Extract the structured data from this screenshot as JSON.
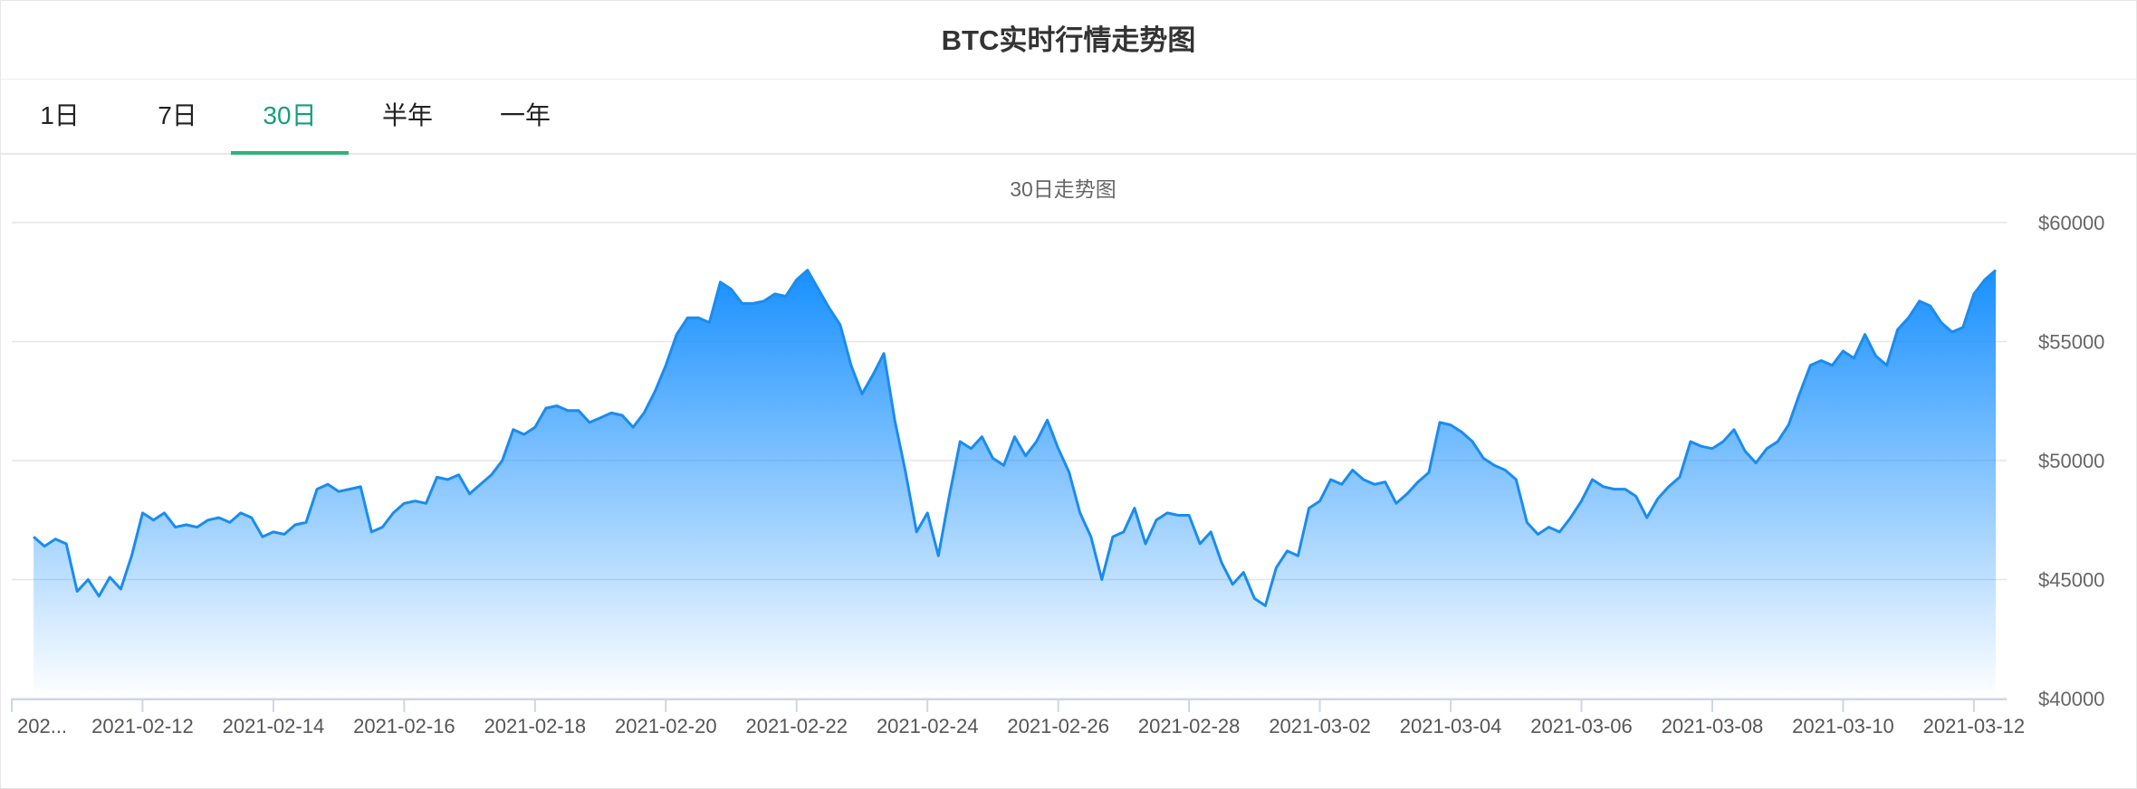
{
  "title": "BTC实时行情走势图",
  "tabs": {
    "items": [
      "1日",
      "7日",
      "30日",
      "半年",
      "一年"
    ],
    "active": 2
  },
  "chart_data": {
    "type": "area",
    "title": "30日走势图",
    "color": "#1a8cf0",
    "grid": true,
    "categories": [
      "202...",
      null,
      null,
      null,
      null,
      null,
      null,
      null,
      null,
      null,
      null,
      null,
      "2021-02-12",
      null,
      null,
      null,
      null,
      null,
      null,
      null,
      null,
      null,
      null,
      null,
      "2021-02-14",
      null,
      null,
      null,
      null,
      null,
      null,
      null,
      null,
      null,
      null,
      null,
      "2021-02-16",
      null,
      null,
      null,
      null,
      null,
      null,
      null,
      null,
      null,
      null,
      null,
      "2021-02-18",
      null,
      null,
      null,
      null,
      null,
      null,
      null,
      null,
      null,
      null,
      null,
      "2021-02-20",
      null,
      null,
      null,
      null,
      null,
      null,
      null,
      null,
      null,
      null,
      null,
      "2021-02-22",
      null,
      null,
      null,
      null,
      null,
      null,
      null,
      null,
      null,
      null,
      null,
      "2021-02-24",
      null,
      null,
      null,
      null,
      null,
      null,
      null,
      null,
      null,
      null,
      null,
      "2021-02-26",
      null,
      null,
      null,
      null,
      null,
      null,
      null,
      null,
      null,
      null,
      null,
      "2021-02-28",
      null,
      null,
      null,
      null,
      null,
      null,
      null,
      null,
      null,
      null,
      null,
      "2021-03-02",
      null,
      null,
      null,
      null,
      null,
      null,
      null,
      null,
      null,
      null,
      null,
      "2021-03-04",
      null,
      null,
      null,
      null,
      null,
      null,
      null,
      null,
      null,
      null,
      null,
      "2021-03-06",
      null,
      null,
      null,
      null,
      null,
      null,
      null,
      null,
      null,
      null,
      null,
      "2021-03-08",
      null,
      null,
      null,
      null,
      null,
      null,
      null,
      null,
      null,
      null,
      null,
      "2021-03-10",
      null,
      null,
      null,
      null,
      null,
      null,
      null,
      null,
      null,
      null,
      null,
      "2021-03-12",
      null,
      null,
      null
    ],
    "values": [
      null,
      null,
      46800,
      46400,
      46700,
      46500,
      44500,
      45000,
      44300,
      45100,
      44600,
      46000,
      47800,
      47500,
      47800,
      47200,
      47300,
      47200,
      47500,
      47600,
      47400,
      47800,
      47600,
      46800,
      47000,
      46900,
      47300,
      47400,
      48800,
      49000,
      48700,
      48800,
      48900,
      47000,
      47200,
      47800,
      48200,
      48300,
      48200,
      49300,
      49200,
      49400,
      48600,
      49000,
      49400,
      50000,
      51300,
      51100,
      51400,
      52200,
      52300,
      52100,
      52100,
      51600,
      51800,
      52000,
      51900,
      51400,
      52000,
      52900,
      54000,
      55300,
      56000,
      56000,
      55800,
      57500,
      57200,
      56600,
      56600,
      56700,
      57000,
      56900,
      57600,
      58000,
      57200,
      56400,
      55700,
      54000,
      52800,
      53600,
      54500,
      51700,
      49500,
      47000,
      47800,
      46000,
      48500,
      50800,
      50500,
      51000,
      50100,
      49800,
      51000,
      50200,
      50800,
      51700,
      50500,
      49500,
      47800,
      46800,
      45000,
      46800,
      47000,
      48000,
      46500,
      47500,
      47800,
      47700,
      47700,
      46500,
      47000,
      45700,
      44800,
      45300,
      44200,
      43900,
      45500,
      46200,
      46000,
      48000,
      48300,
      49200,
      49000,
      49600,
      49200,
      49000,
      49100,
      48200,
      48600,
      49100,
      49500,
      51600,
      51500,
      51200,
      50800,
      50100,
      49800,
      49600,
      49200,
      47400,
      46900,
      47200,
      47000,
      47600,
      48300,
      49200,
      48900,
      48800,
      48800,
      48500,
      47600,
      48400,
      48900,
      49300,
      50800,
      50600,
      50500,
      50800,
      51300,
      50400,
      49900,
      50500,
      50800,
      51500,
      52800,
      54000,
      54200,
      54000,
      54600,
      54300,
      55300,
      54400,
      54000,
      55500,
      56000,
      56700,
      56500,
      55800,
      55400,
      55600,
      57000,
      57600,
      58000,
      null
    ],
    "ylim": [
      40000,
      60000
    ],
    "yticks": [
      {
        "value": 40000,
        "label": "$40000"
      },
      {
        "value": 45000,
        "label": "$45000"
      },
      {
        "value": 50000,
        "label": "$50000"
      },
      {
        "value": 55000,
        "label": "$55000"
      },
      {
        "value": 60000,
        "label": "$60000"
      }
    ]
  }
}
